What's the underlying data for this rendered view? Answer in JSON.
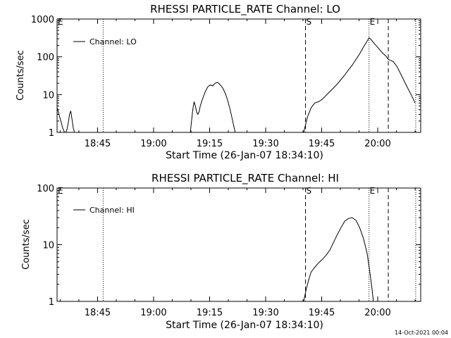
{
  "footer_date": "14-Oct-2021 00:04",
  "chart_data": [
    {
      "type": "line",
      "title": "RHESSI PARTICLE_RATE Channel: LO",
      "xlabel": "Start Time (26-Jan-07 18:34:10)",
      "ylabel": "Counts/sec",
      "yscale": "log",
      "ylim": [
        1,
        1000
      ],
      "xlim": [
        "18:34:10",
        "20:11:30"
      ],
      "x_ticks": [
        "18:45",
        "19:00",
        "19:15",
        "19:30",
        "19:45",
        "20:00"
      ],
      "y_ticks": [
        {
          "value": 1,
          "label": "1"
        },
        {
          "value": 10,
          "label": "10"
        },
        {
          "value": 100,
          "label": "100"
        },
        {
          "value": 1000,
          "label": "1000"
        }
      ],
      "legend": {
        "label": "Channel: LO",
        "placement": "top-left"
      },
      "markers": [
        {
          "label": "E",
          "time": "18:34:10",
          "style": "dotted"
        },
        {
          "label": "",
          "time": "18:46:30",
          "style": "dotted"
        },
        {
          "label": "S",
          "time": "19:40:40",
          "style": "dashed"
        },
        {
          "label": "E",
          "time": "19:57:40",
          "style": "dotted"
        },
        {
          "label": "",
          "time": "20:02:50",
          "style": "dashed"
        },
        {
          "label": "",
          "time": "20:10:10",
          "style": "dotted"
        }
      ],
      "series": [
        {
          "segments": [
            [
              [
                "18:34:10",
                4.5
              ],
              [
                "18:34:40",
                3.0
              ],
              [
                "18:35:10",
                2.0
              ],
              [
                "18:35:40",
                1.3
              ],
              [
                "18:36:10",
                1.0
              ],
              [
                "18:36:30",
                0.9
              ],
              [
                "18:36:50",
                1.2
              ],
              [
                "18:37:10",
                1.8
              ],
              [
                "18:37:30",
                3.0
              ],
              [
                "18:37:50",
                3.7
              ],
              [
                "18:38:10",
                2.2
              ],
              [
                "18:38:30",
                1.3
              ],
              [
                "18:38:50",
                1.0
              ]
            ],
            [
              [
                "19:09:50",
                1.0
              ],
              [
                "19:10:10",
                2.0
              ],
              [
                "19:10:30",
                4.0
              ],
              [
                "19:10:50",
                6.5
              ],
              [
                "19:11:10",
                5.0
              ],
              [
                "19:11:30",
                3.5
              ],
              [
                "19:11:50",
                3.0
              ],
              [
                "19:12:10",
                3.5
              ],
              [
                "19:12:30",
                5.0
              ],
              [
                "19:13:10",
                8.0
              ],
              [
                "19:13:50",
                12.0
              ],
              [
                "19:14:30",
                16.0
              ],
              [
                "19:15:10",
                18.0
              ],
              [
                "19:15:50",
                17.0
              ],
              [
                "19:16:30",
                20.0
              ],
              [
                "19:17:10",
                21.0
              ],
              [
                "19:17:50",
                18.0
              ],
              [
                "19:18:30",
                15.0
              ],
              [
                "19:19:10",
                11.0
              ],
              [
                "19:19:50",
                7.0
              ],
              [
                "19:20:30",
                4.0
              ],
              [
                "19:21:10",
                2.0
              ],
              [
                "19:21:50",
                1.0
              ]
            ],
            [
              [
                "19:40:10",
                1.0
              ],
              [
                "19:41:10",
                2.5
              ],
              [
                "19:42:10",
                4.5
              ],
              [
                "19:43:10",
                6.0
              ],
              [
                "19:44:10",
                6.5
              ],
              [
                "19:45:10",
                7.5
              ],
              [
                "19:46:10",
                9.5
              ],
              [
                "19:47:10",
                12.0
              ],
              [
                "19:48:10",
                15.0
              ],
              [
                "19:49:10",
                19.0
              ],
              [
                "19:50:10",
                25.0
              ],
              [
                "19:51:10",
                33.0
              ],
              [
                "19:52:10",
                45.0
              ],
              [
                "19:53:10",
                60.0
              ],
              [
                "19:54:10",
                85.0
              ],
              [
                "19:55:10",
                120.0
              ],
              [
                "19:56:10",
                180.0
              ],
              [
                "19:57:10",
                260.0
              ],
              [
                "19:57:40",
                320.0
              ],
              [
                "19:58:10",
                290.0
              ],
              [
                "19:59:10",
                220.0
              ],
              [
                "20:00:10",
                170.0
              ],
              [
                "20:01:10",
                130.0
              ],
              [
                "20:02:10",
                105.0
              ],
              [
                "20:02:50",
                85.0
              ],
              [
                "20:03:30",
                80.0
              ],
              [
                "20:04:10",
                75.0
              ],
              [
                "20:05:10",
                55.0
              ],
              [
                "20:06:10",
                35.0
              ],
              [
                "20:07:10",
                22.0
              ],
              [
                "20:08:10",
                14.0
              ],
              [
                "20:09:10",
                9.0
              ],
              [
                "20:10:00",
                6.0
              ]
            ]
          ]
        }
      ]
    },
    {
      "type": "line",
      "title": "RHESSI PARTICLE_RATE Channel: HI",
      "xlabel": "Start Time (26-Jan-07 18:34:10)",
      "ylabel": "Counts/sec",
      "yscale": "log",
      "ylim": [
        1,
        100
      ],
      "xlim": [
        "18:34:10",
        "20:11:30"
      ],
      "x_ticks": [
        "18:45",
        "19:00",
        "19:15",
        "19:30",
        "19:45",
        "20:00"
      ],
      "y_ticks": [
        {
          "value": 1,
          "label": "1"
        },
        {
          "value": 10,
          "label": "10"
        },
        {
          "value": 100,
          "label": "100"
        }
      ],
      "legend": {
        "label": "Channel: HI",
        "placement": "top-left"
      },
      "markers": [
        {
          "label": "E",
          "time": "18:34:10",
          "style": "dotted"
        },
        {
          "label": "",
          "time": "18:46:30",
          "style": "dotted"
        },
        {
          "label": "S",
          "time": "19:40:40",
          "style": "dashed"
        },
        {
          "label": "E",
          "time": "19:57:40",
          "style": "dotted"
        },
        {
          "label": "",
          "time": "20:02:50",
          "style": "dashed"
        },
        {
          "label": "",
          "time": "20:10:10",
          "style": "dotted"
        }
      ],
      "series": [
        {
          "segments": [
            [
              [
                "19:40:10",
                1.0
              ],
              [
                "19:40:50",
                1.6
              ],
              [
                "19:41:30",
                2.4
              ],
              [
                "19:42:10",
                3.3
              ],
              [
                "19:43:10",
                4.0
              ],
              [
                "19:44:10",
                4.8
              ],
              [
                "19:45:10",
                5.5
              ],
              [
                "19:46:10",
                6.5
              ],
              [
                "19:47:10",
                8.0
              ],
              [
                "19:48:10",
                11.0
              ],
              [
                "19:49:10",
                15.0
              ],
              [
                "19:50:10",
                20.0
              ],
              [
                "19:51:10",
                26.0
              ],
              [
                "19:52:10",
                29.0
              ],
              [
                "19:53:10",
                30.0
              ],
              [
                "19:54:10",
                27.0
              ],
              [
                "19:55:10",
                20.0
              ],
              [
                "19:56:10",
                13.0
              ],
              [
                "19:57:10",
                7.0
              ],
              [
                "19:57:50",
                3.5
              ],
              [
                "19:58:30",
                1.6
              ],
              [
                "19:58:50",
                1.0
              ]
            ]
          ]
        }
      ]
    }
  ]
}
